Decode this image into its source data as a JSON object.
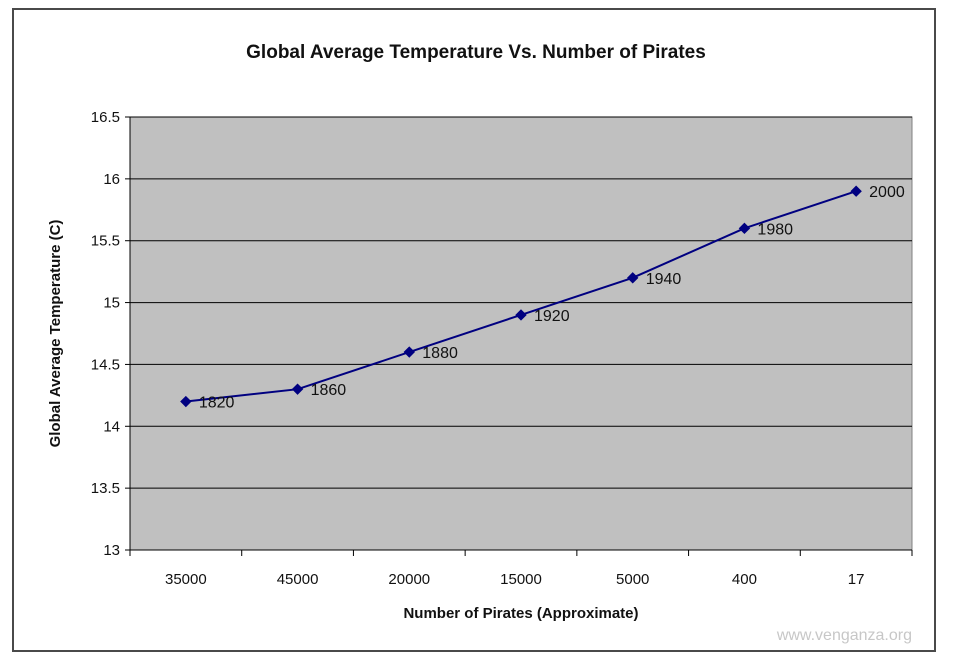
{
  "chart_data": {
    "type": "line",
    "title": "Global Average Temperature Vs. Number of Pirates",
    "xlabel": "Number of Pirates (Approximate)",
    "ylabel": "Global Average Temperature  (C)",
    "categories": [
      "35000",
      "45000",
      "20000",
      "15000",
      "5000",
      "400",
      "17"
    ],
    "series": [
      {
        "values": [
          14.2,
          14.3,
          14.6,
          14.9,
          15.2,
          15.6,
          15.9
        ],
        "point_labels": [
          "1820",
          "1860",
          "1880",
          "1920",
          "1940",
          "1980",
          "2000"
        ],
        "color": "#000080"
      }
    ],
    "ylim": [
      13,
      16.5
    ],
    "yticks": [
      "13",
      "13.5",
      "14",
      "14.5",
      "15",
      "15.5",
      "16",
      "16.5"
    ],
    "grid": true,
    "legend": "none",
    "plot_background": "#c0c0c0",
    "watermark": "www.venganza.org"
  }
}
